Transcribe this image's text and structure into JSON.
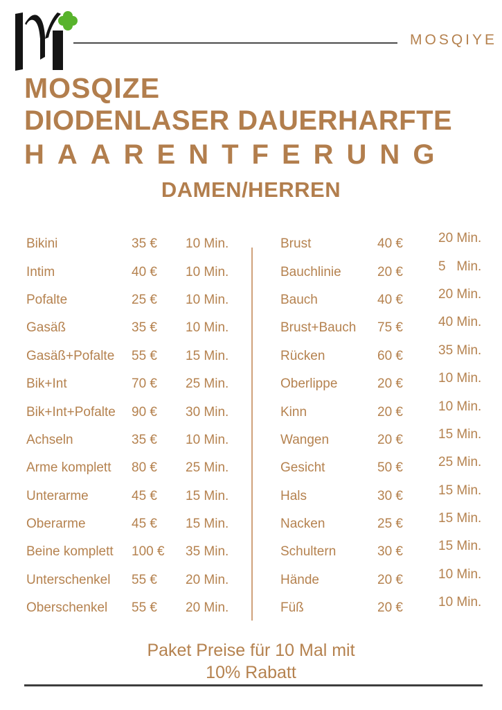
{
  "brand": {
    "wordmark": "MOSQIYE",
    "logo_icon": "mosqiye-m-clover-logo",
    "colors": {
      "accent_tan": "#b5824f",
      "heading_tan": "#b27e4d",
      "logo_green": "#58b32c",
      "logo_black": "#141414",
      "rule_dark": "#3d3d3d",
      "divider_tan": "#cfa17b"
    }
  },
  "title": {
    "line1": "MOSQIZE",
    "line2": "DIODENLASER DAUERHARFTE",
    "line3": "HAARENTFERUNG",
    "line4": "DAMEN/HERREN"
  },
  "price_list": {
    "left": [
      {
        "name": "Bikini",
        "price": "35 €",
        "time": "10 Min."
      },
      {
        "name": "Intim",
        "price": "40 €",
        "time": "10 Min."
      },
      {
        "name": "Pofalte",
        "price": "25 €",
        "time": "10 Min."
      },
      {
        "name": "Gasäß",
        "price": "35 €",
        "time": "10 Min."
      },
      {
        "name": "Gasäß+Pofalte",
        "price": "55 €",
        "time": "15 Min."
      },
      {
        "name": "Bik+Int",
        "price": "70 €",
        "time": "25 Min."
      },
      {
        "name": "Bik+Int+Pofalte",
        "price": "90 €",
        "time": "30 Min."
      },
      {
        "name": "Achseln",
        "price": "35 €",
        "time": "10 Min."
      },
      {
        "name": "Arme komplett",
        "price": "80 €",
        "time": "25 Min."
      },
      {
        "name": "Unterarme",
        "price": "45 €",
        "time": "15 Min."
      },
      {
        "name": "Oberarme",
        "price": "45 €",
        "time": "15 Min."
      },
      {
        "name": "Beine komplett",
        "price": "100 €",
        "time": "35 Min."
      },
      {
        "name": "Unterschenkel",
        "price": "55 €",
        "time": "20 Min."
      },
      {
        "name": "Oberschenkel",
        "price": "55 €",
        "time": "20 Min."
      }
    ],
    "right": [
      {
        "name": "Brust",
        "price": "40 €",
        "time": "20 Min."
      },
      {
        "name": "Bauchlinie",
        "price": "20 €",
        "time": "5   Min."
      },
      {
        "name": "Bauch",
        "price": "40 €",
        "time": "20 Min."
      },
      {
        "name": "Brust+Bauch",
        "price": "75 €",
        "time": "40 Min."
      },
      {
        "name": "Rücken",
        "price": "60 €",
        "time": "35 Min."
      },
      {
        "name": "Oberlippe",
        "price": "20 €",
        "time": "10 Min."
      },
      {
        "name": "Kinn",
        "price": "20 €",
        "time": "10 Min."
      },
      {
        "name": "Wangen",
        "price": "20 €",
        "time": "15 Min."
      },
      {
        "name": "Gesicht",
        "price": "50 €",
        "time": "25 Min."
      },
      {
        "name": "Hals",
        "price": "30 €",
        "time": "15 Min."
      },
      {
        "name": "Nacken",
        "price": "25 €",
        "time": "15 Min."
      },
      {
        "name": "Schultern",
        "price": "30 €",
        "time": "15 Min."
      },
      {
        "name": "Hände",
        "price": "20 €",
        "time": "10 Min."
      },
      {
        "name": "Füß",
        "price": "20 €",
        "time": "10 Min."
      }
    ]
  },
  "footer": {
    "line1": "Paket Preise für 10 Mal mit",
    "line2": "10% Rabatt"
  }
}
